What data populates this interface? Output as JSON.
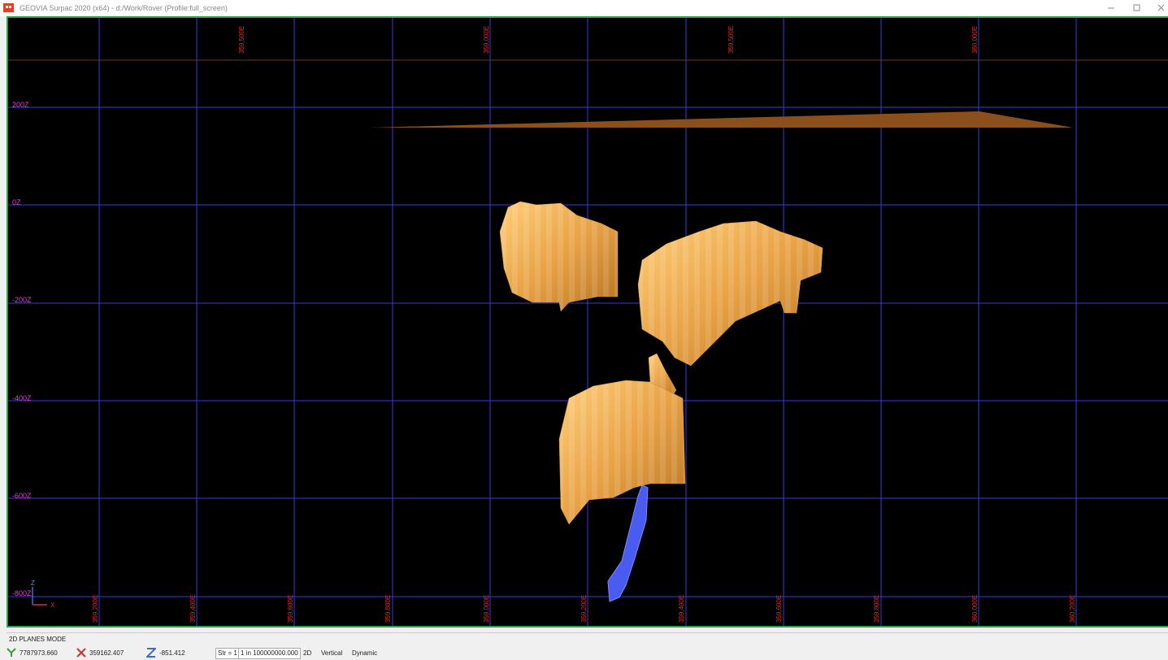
{
  "window": {
    "title": "GEOVIA Surpac 2020 (x64) - d:/Work/Rover (Profile:full_screen)"
  },
  "viewport": {
    "top_labels": [
      "359,500E",
      "359,000E",
      "359,500E",
      "360,000E"
    ],
    "bottom_labels": [
      "359,200E",
      "359,400E",
      "359,600E",
      "359,800E",
      "359,000E",
      "359,200E",
      "359,400E",
      "359,600E",
      "359,800E",
      "360,000E",
      "360,200E"
    ],
    "left_labels": [
      "200Z",
      "0Z",
      "-200Z",
      "-400Z",
      "-600Z",
      "-800Z"
    ],
    "axis_indicator": {
      "z": "Z",
      "x": "X"
    }
  },
  "status": {
    "mode": "2D PLANES MODE",
    "y": "7787973.660",
    "x": "359162.407",
    "z": "-851.412",
    "str": "Str = 1",
    "scale": "1 in 100000000.000",
    "view": "2D",
    "orientation": "Vertical",
    "motion": "Dynamic"
  }
}
